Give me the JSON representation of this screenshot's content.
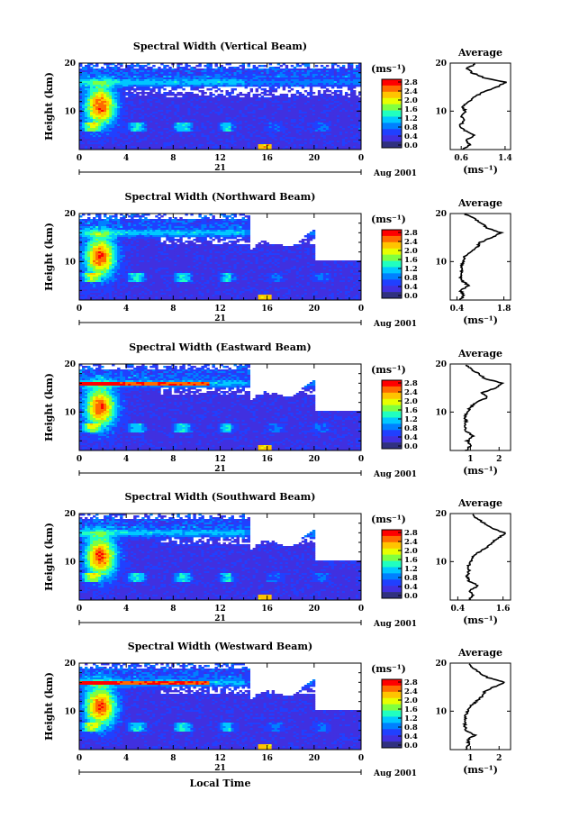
{
  "legend": {
    "unit_label": "(ms⁻¹)",
    "ticks": [
      "2.8",
      "2.4",
      "2.0",
      "1.6",
      "1.2",
      "0.8",
      "0.4",
      "0.0"
    ],
    "colors": [
      "#ff0000",
      "#ff6a00",
      "#ffc400",
      "#e8ff00",
      "#80ff40",
      "#20ffc0",
      "#00c8ff",
      "#0080ff",
      "#2040ff",
      "#4030e0",
      "#303080"
    ]
  },
  "common": {
    "ylabel": "Height (km)",
    "x_ticks": [
      "0",
      "4",
      "8",
      "12",
      "16",
      "20",
      "0"
    ],
    "day_label": "21",
    "month_label": "Aug 2001",
    "xlabel": "Local Time",
    "avg_title": "Average",
    "avg_xlabel": "(ms⁻¹)"
  },
  "chart_data": [
    {
      "type": "heatmap",
      "title": "Spectral Width (Vertical Beam)",
      "x_range": [
        0,
        24
      ],
      "y_range": [
        2,
        20
      ],
      "y_ticks": [
        "20",
        "10"
      ],
      "white_region": "none",
      "average": {
        "title": "Average",
        "x_ticks": [
          "0.6",
          "1.4"
        ],
        "x_range": [
          0.4,
          1.5
        ],
        "profile": [
          [
            2,
            0.62
          ],
          [
            3,
            0.75
          ],
          [
            4,
            0.68
          ],
          [
            5,
            0.85
          ],
          [
            6,
            0.65
          ],
          [
            7,
            0.58
          ],
          [
            8,
            0.65
          ],
          [
            9,
            0.6
          ],
          [
            10,
            0.68
          ],
          [
            11,
            0.62
          ],
          [
            12,
            0.75
          ],
          [
            13,
            0.85
          ],
          [
            14,
            1.0
          ],
          [
            15,
            1.25
          ],
          [
            16,
            1.42
          ],
          [
            17,
            1.0
          ],
          [
            18,
            0.8
          ],
          [
            19,
            0.7
          ],
          [
            20,
            0.9
          ]
        ]
      }
    },
    {
      "type": "heatmap",
      "title": "Spectral Width (Northward Beam)",
      "x_range": [
        0,
        24
      ],
      "y_range": [
        2,
        20
      ],
      "y_ticks": [
        "20",
        "10"
      ],
      "white_region": "upper-right",
      "average": {
        "title": "Average",
        "x_ticks": [
          "0.4",
          "1.8"
        ],
        "x_range": [
          0.2,
          2.0
        ],
        "profile": [
          [
            2,
            0.5
          ],
          [
            3,
            0.6
          ],
          [
            4,
            0.5
          ],
          [
            5,
            0.75
          ],
          [
            6,
            0.55
          ],
          [
            7,
            0.5
          ],
          [
            8,
            0.55
          ],
          [
            9,
            0.52
          ],
          [
            10,
            0.6
          ],
          [
            11,
            0.62
          ],
          [
            12,
            0.8
          ],
          [
            13,
            1.0
          ],
          [
            14,
            1.1
          ],
          [
            15,
            1.45
          ],
          [
            16,
            1.7
          ],
          [
            17,
            1.3
          ],
          [
            18,
            1.15
          ],
          [
            19,
            0.9
          ],
          [
            20,
            0.6
          ]
        ]
      }
    },
    {
      "type": "heatmap",
      "title": "Spectral Width (Eastward Beam)",
      "x_range": [
        0,
        24
      ],
      "y_range": [
        2,
        20
      ],
      "y_ticks": [
        "20",
        "10"
      ],
      "white_region": "upper-right",
      "average": {
        "title": "Average",
        "x_ticks": [
          "1",
          "2"
        ],
        "x_range": [
          0.3,
          2.4
        ],
        "profile": [
          [
            2,
            0.85
          ],
          [
            3,
            1.0
          ],
          [
            4,
            0.9
          ],
          [
            5,
            1.1
          ],
          [
            6,
            0.85
          ],
          [
            7,
            0.8
          ],
          [
            8,
            0.85
          ],
          [
            9,
            0.8
          ],
          [
            10,
            0.9
          ],
          [
            11,
            1.0
          ],
          [
            12,
            1.2
          ],
          [
            13,
            1.6
          ],
          [
            14,
            1.4
          ],
          [
            15,
            1.9
          ],
          [
            16,
            2.1
          ],
          [
            17,
            1.5
          ],
          [
            18,
            1.3
          ],
          [
            19,
            1.0
          ],
          [
            20,
            0.85
          ]
        ]
      }
    },
    {
      "type": "heatmap",
      "title": "Spectral Width (Southward Beam)",
      "x_range": [
        0,
        24
      ],
      "y_range": [
        2,
        20
      ],
      "y_ticks": [
        "20",
        "10"
      ],
      "white_region": "upper-right",
      "average": {
        "title": "Average",
        "x_ticks": [
          "0.4",
          "1.6"
        ],
        "x_range": [
          0.2,
          1.8
        ],
        "profile": [
          [
            2,
            0.7
          ],
          [
            3,
            0.8
          ],
          [
            4,
            0.72
          ],
          [
            5,
            0.95
          ],
          [
            6,
            0.7
          ],
          [
            7,
            0.65
          ],
          [
            8,
            0.7
          ],
          [
            9,
            0.68
          ],
          [
            10,
            0.75
          ],
          [
            11,
            0.8
          ],
          [
            12,
            0.95
          ],
          [
            13,
            1.2
          ],
          [
            14,
            1.3
          ],
          [
            15,
            1.5
          ],
          [
            16,
            1.65
          ],
          [
            17,
            1.3
          ],
          [
            18,
            1.1
          ],
          [
            19,
            0.9
          ],
          [
            20,
            0.75
          ]
        ]
      }
    },
    {
      "type": "heatmap",
      "title": "Spectral Width (Westward Beam)",
      "x_range": [
        0,
        24
      ],
      "y_range": [
        2,
        20
      ],
      "y_ticks": [
        "20",
        "10"
      ],
      "white_region": "upper-right",
      "average": {
        "title": "Average",
        "x_ticks": [
          "1",
          "2"
        ],
        "x_range": [
          0.3,
          2.4
        ],
        "profile": [
          [
            2,
            0.85
          ],
          [
            3,
            0.95
          ],
          [
            4,
            0.9
          ],
          [
            5,
            1.15
          ],
          [
            6,
            0.85
          ],
          [
            7,
            0.8
          ],
          [
            8,
            0.85
          ],
          [
            9,
            0.82
          ],
          [
            10,
            0.9
          ],
          [
            11,
            1.0
          ],
          [
            12,
            1.2
          ],
          [
            13,
            1.4
          ],
          [
            14,
            1.5
          ],
          [
            15,
            1.8
          ],
          [
            16,
            2.2
          ],
          [
            17,
            1.6
          ],
          [
            18,
            1.3
          ],
          [
            19,
            1.1
          ],
          [
            20,
            0.9
          ]
        ]
      }
    }
  ]
}
